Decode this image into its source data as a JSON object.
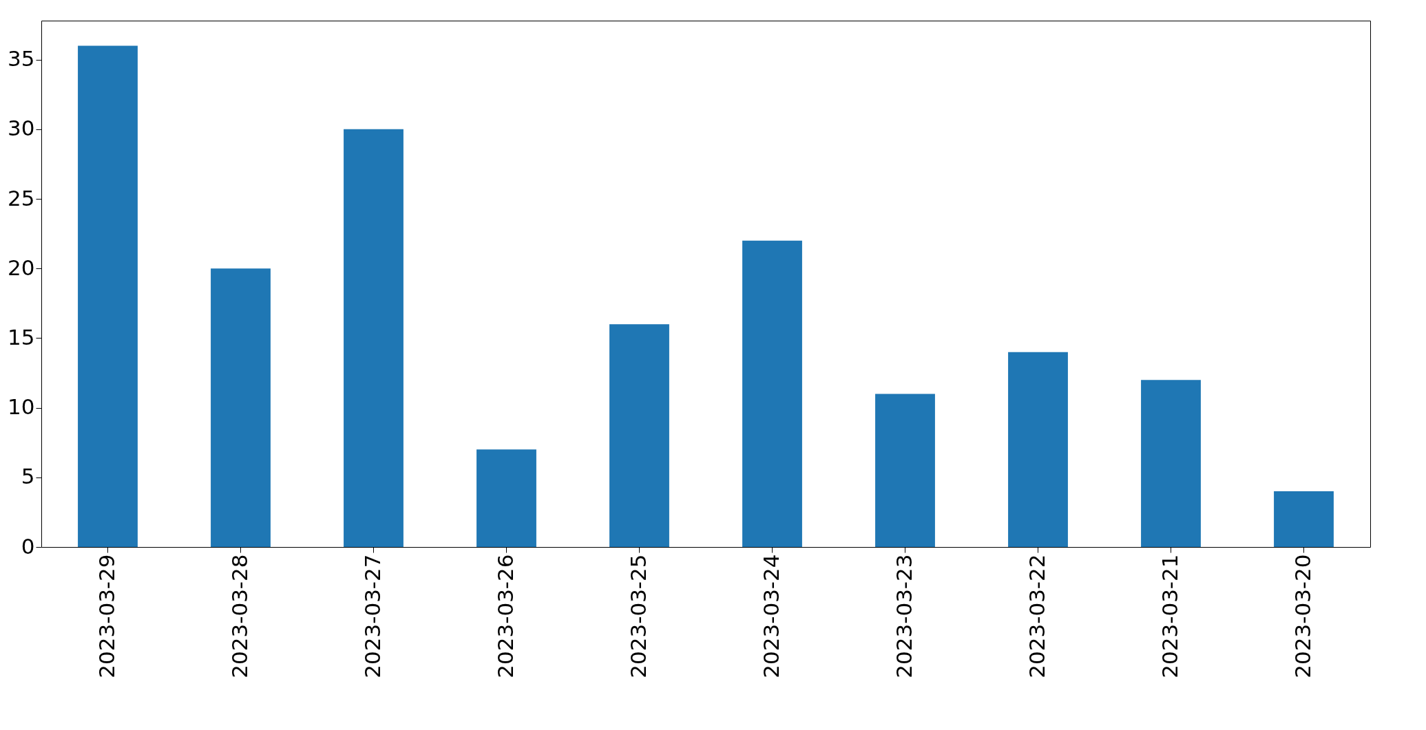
{
  "chart_data": {
    "type": "bar",
    "categories": [
      "2023-03-29",
      "2023-03-28",
      "2023-03-27",
      "2023-03-26",
      "2023-03-25",
      "2023-03-24",
      "2023-03-23",
      "2023-03-22",
      "2023-03-21",
      "2023-03-20"
    ],
    "values": [
      36,
      20,
      30,
      7,
      16,
      22,
      11,
      14,
      12,
      4
    ],
    "color": "#1f77b4",
    "ylim": [
      0,
      37.8
    ],
    "yticks": [
      0,
      5,
      10,
      15,
      20,
      25,
      30,
      35
    ],
    "grid": false
  }
}
